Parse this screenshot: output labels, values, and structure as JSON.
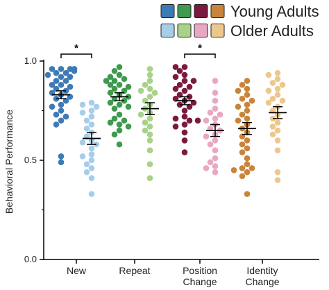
{
  "chart_data": {
    "type": "scatter",
    "ylabel": "Behavioral Performance",
    "ylim": [
      0.0,
      1.0
    ],
    "yticks": [
      "0.0",
      "0.5",
      "1.0"
    ],
    "categories": [
      {
        "line1": "New",
        "line2": ""
      },
      {
        "line1": "Repeat",
        "line2": ""
      },
      {
        "line1": "Position",
        "line2": "Change"
      },
      {
        "line1": "Identity",
        "line2": "Change"
      }
    ],
    "legend": {
      "placement": "top-right",
      "entries": [
        "Young Adults",
        "Older Adults"
      ]
    },
    "series": [
      {
        "name": "Young Adults",
        "colors": [
          "#3d7ab8",
          "#3e9a4d",
          "#7a1a3e",
          "#c9843a"
        ],
        "groups": [
          {
            "mean": 0.83,
            "sem": 0.02,
            "points": [
              0.96,
              0.96,
              0.96,
              0.96,
              0.95,
              0.94,
              0.94,
              0.93,
              0.92,
              0.92,
              0.9,
              0.9,
              0.88,
              0.88,
              0.87,
              0.86,
              0.85,
              0.84,
              0.83,
              0.82,
              0.81,
              0.8,
              0.78,
              0.77,
              0.75,
              0.73,
              0.72,
              0.7,
              0.68,
              0.52,
              0.49
            ]
          },
          {
            "mean": 0.82,
            "sem": 0.02,
            "points": [
              0.97,
              0.95,
              0.93,
              0.92,
              0.91,
              0.9,
              0.9,
              0.88,
              0.88,
              0.87,
              0.86,
              0.85,
              0.84,
              0.83,
              0.82,
              0.81,
              0.8,
              0.79,
              0.78,
              0.77,
              0.76,
              0.73,
              0.71,
              0.7,
              0.69,
              0.68,
              0.67,
              0.65,
              0.63,
              0.58
            ]
          },
          {
            "mean": 0.8,
            "sem": 0.02,
            "points": [
              0.97,
              0.97,
              0.95,
              0.93,
              0.92,
              0.9,
              0.9,
              0.88,
              0.87,
              0.86,
              0.85,
              0.83,
              0.82,
              0.81,
              0.8,
              0.79,
              0.78,
              0.77,
              0.75,
              0.72,
              0.71,
              0.7,
              0.7,
              0.68,
              0.67,
              0.64,
              0.6,
              0.54
            ]
          },
          {
            "mean": 0.66,
            "sem": 0.03,
            "points": [
              0.9,
              0.88,
              0.86,
              0.85,
              0.83,
              0.81,
              0.8,
              0.78,
              0.77,
              0.75,
              0.73,
              0.71,
              0.7,
              0.68,
              0.66,
              0.64,
              0.62,
              0.6,
              0.58,
              0.56,
              0.54,
              0.51,
              0.48,
              0.46,
              0.46,
              0.45,
              0.44,
              0.42,
              0.33
            ]
          }
        ]
      },
      {
        "name": "Older Adults",
        "colors": [
          "#a8cde8",
          "#a8d18a",
          "#e8a8c4",
          "#ecc88e"
        ],
        "groups": [
          {
            "mean": 0.61,
            "sem": 0.03,
            "points": [
              0.79,
              0.78,
              0.77,
              0.75,
              0.74,
              0.72,
              0.7,
              0.68,
              0.66,
              0.64,
              0.62,
              0.6,
              0.59,
              0.58,
              0.56,
              0.53,
              0.52,
              0.5,
              0.48,
              0.46,
              0.44,
              0.41,
              0.33
            ]
          },
          {
            "mean": 0.76,
            "sem": 0.03,
            "points": [
              0.96,
              0.93,
              0.9,
              0.88,
              0.86,
              0.85,
              0.84,
              0.82,
              0.8,
              0.78,
              0.76,
              0.74,
              0.73,
              0.71,
              0.69,
              0.67,
              0.65,
              0.63,
              0.6,
              0.55,
              0.48,
              0.41
            ]
          },
          {
            "mean": 0.65,
            "sem": 0.03,
            "points": [
              0.9,
              0.84,
              0.8,
              0.76,
              0.74,
              0.73,
              0.71,
              0.7,
              0.68,
              0.66,
              0.65,
              0.63,
              0.62,
              0.6,
              0.58,
              0.55,
              0.51,
              0.49,
              0.47,
              0.46,
              0.44
            ]
          },
          {
            "mean": 0.74,
            "sem": 0.03,
            "points": [
              0.94,
              0.93,
              0.91,
              0.89,
              0.88,
              0.86,
              0.85,
              0.83,
              0.81,
              0.8,
              0.79,
              0.77,
              0.75,
              0.73,
              0.71,
              0.69,
              0.67,
              0.65,
              0.63,
              0.6,
              0.55,
              0.44,
              0.4
            ]
          }
        ]
      }
    ],
    "significance": [
      {
        "category_index": 0,
        "label": "*"
      },
      {
        "category_index": 2,
        "label": "*"
      }
    ]
  }
}
